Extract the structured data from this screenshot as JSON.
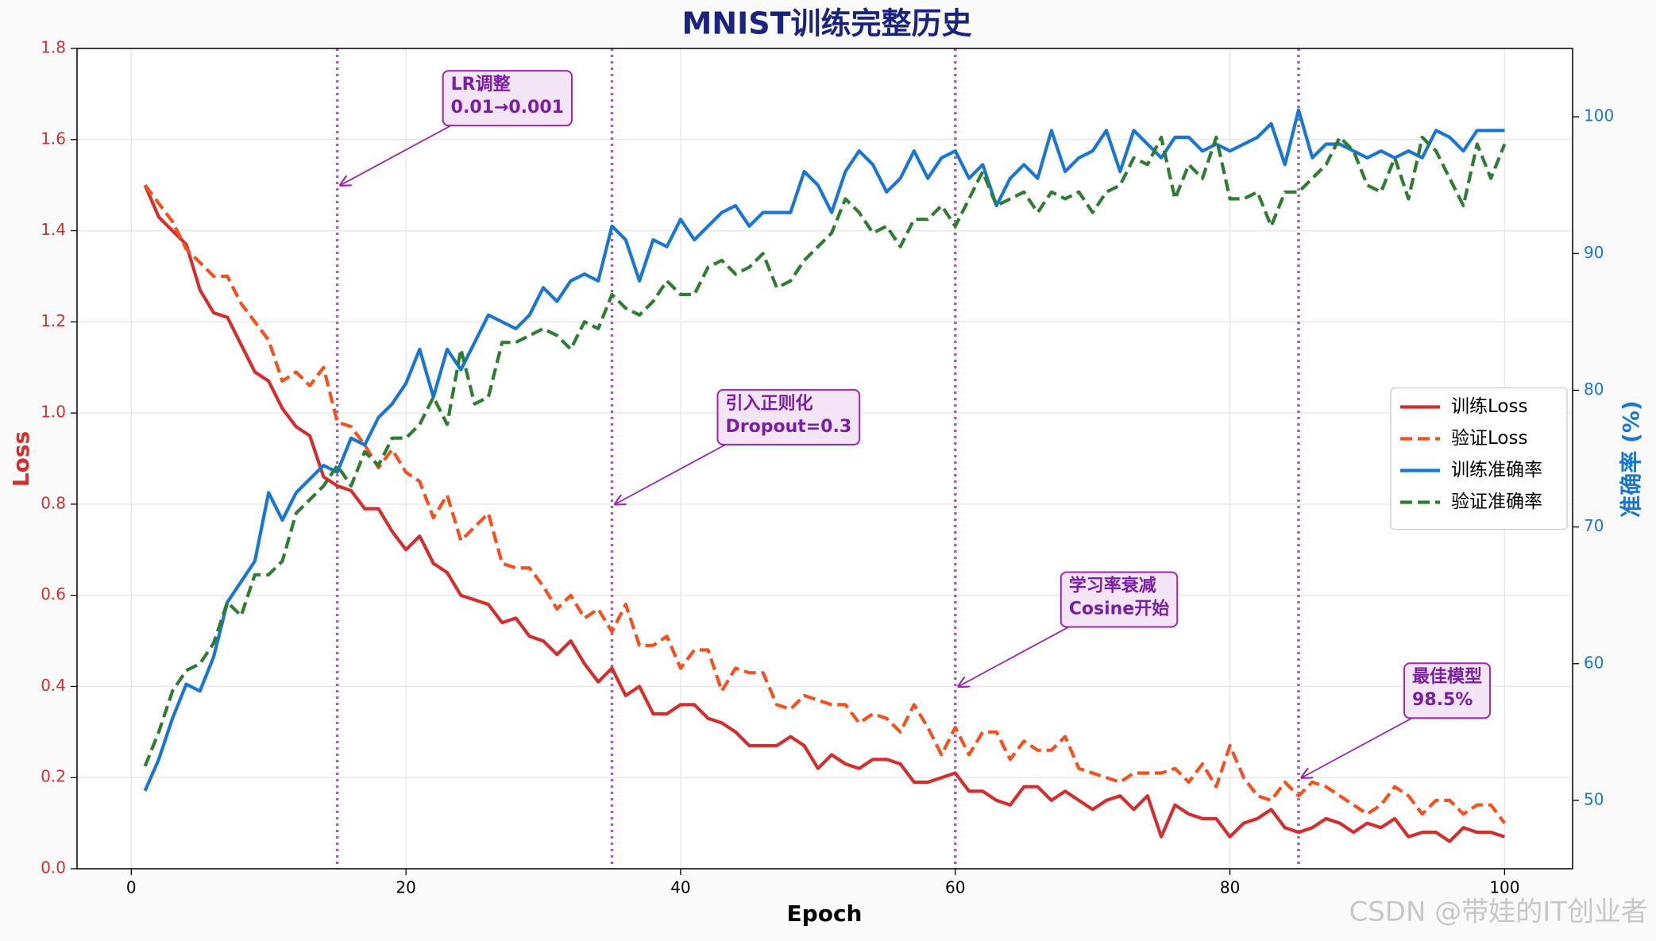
{
  "chart_data": {
    "type": "line",
    "title": "MNIST训练完整历史",
    "xlabel": "Epoch",
    "ylabel": "Loss",
    "y2label": "准确率 (%)",
    "x": [
      1,
      2,
      3,
      4,
      5,
      6,
      7,
      8,
      9,
      10,
      11,
      12,
      13,
      14,
      15,
      16,
      17,
      18,
      19,
      20,
      21,
      22,
      23,
      24,
      25,
      26,
      27,
      28,
      29,
      30,
      31,
      32,
      33,
      34,
      35,
      36,
      37,
      38,
      39,
      40,
      41,
      42,
      43,
      44,
      45,
      46,
      47,
      48,
      49,
      50,
      51,
      52,
      53,
      54,
      55,
      56,
      57,
      58,
      59,
      60,
      61,
      62,
      63,
      64,
      65,
      66,
      67,
      68,
      69,
      70,
      71,
      72,
      73,
      74,
      75,
      76,
      77,
      78,
      79,
      80,
      81,
      82,
      83,
      84,
      85,
      86,
      87,
      88,
      89,
      90,
      91,
      92,
      93,
      94,
      95,
      96,
      97,
      98,
      99,
      100
    ],
    "series": [
      {
        "name": "训练Loss",
        "color": "#d32f2f",
        "linestyle": "solid",
        "axis": "y",
        "values": [
          1.5,
          1.43,
          1.4,
          1.37,
          1.27,
          1.22,
          1.21,
          1.15,
          1.09,
          1.07,
          1.01,
          0.97,
          0.95,
          0.86,
          0.84,
          0.83,
          0.79,
          0.79,
          0.74,
          0.7,
          0.73,
          0.67,
          0.65,
          0.6,
          0.59,
          0.58,
          0.54,
          0.55,
          0.51,
          0.5,
          0.47,
          0.5,
          0.45,
          0.41,
          0.44,
          0.38,
          0.4,
          0.34,
          0.34,
          0.36,
          0.36,
          0.33,
          0.32,
          0.3,
          0.27,
          0.27,
          0.27,
          0.29,
          0.27,
          0.22,
          0.25,
          0.23,
          0.22,
          0.24,
          0.24,
          0.23,
          0.19,
          0.19,
          0.2,
          0.21,
          0.17,
          0.17,
          0.15,
          0.14,
          0.18,
          0.18,
          0.15,
          0.17,
          0.15,
          0.13,
          0.15,
          0.16,
          0.13,
          0.16,
          0.07,
          0.14,
          0.12,
          0.11,
          0.11,
          0.07,
          0.1,
          0.11,
          0.13,
          0.09,
          0.08,
          0.09,
          0.11,
          0.1,
          0.08,
          0.1,
          0.09,
          0.11,
          0.07,
          0.08,
          0.08,
          0.06,
          0.09,
          0.08,
          0.08,
          0.07
        ]
      },
      {
        "name": "验证Loss",
        "color": "#f4511e",
        "linestyle": "dashed",
        "axis": "y",
        "values": [
          1.5,
          1.46,
          1.42,
          1.36,
          1.33,
          1.3,
          1.3,
          1.24,
          1.2,
          1.16,
          1.07,
          1.09,
          1.06,
          1.1,
          0.98,
          0.97,
          0.93,
          0.88,
          0.92,
          0.87,
          0.85,
          0.77,
          0.82,
          0.72,
          0.75,
          0.78,
          0.67,
          0.66,
          0.66,
          0.62,
          0.57,
          0.6,
          0.55,
          0.57,
          0.52,
          0.58,
          0.49,
          0.49,
          0.51,
          0.44,
          0.48,
          0.48,
          0.39,
          0.44,
          0.43,
          0.43,
          0.36,
          0.35,
          0.38,
          0.37,
          0.36,
          0.36,
          0.32,
          0.34,
          0.33,
          0.3,
          0.36,
          0.31,
          0.25,
          0.31,
          0.25,
          0.3,
          0.3,
          0.24,
          0.28,
          0.26,
          0.26,
          0.29,
          0.22,
          0.21,
          0.2,
          0.19,
          0.21,
          0.21,
          0.21,
          0.22,
          0.19,
          0.23,
          0.18,
          0.27,
          0.2,
          0.16,
          0.15,
          0.19,
          0.16,
          0.19,
          0.18,
          0.16,
          0.14,
          0.12,
          0.14,
          0.18,
          0.16,
          0.12,
          0.15,
          0.15,
          0.12,
          0.14,
          0.14,
          0.1
        ]
      },
      {
        "name": "训练准确率",
        "color": "#1976d2",
        "linestyle": "solid",
        "axis": "y2",
        "values": [
          50.7,
          53,
          56,
          58.5,
          58,
          60.5,
          64.5,
          66,
          67.5,
          72.5,
          70.5,
          72.5,
          73.5,
          74.5,
          74,
          76.5,
          76,
          78,
          79,
          80.5,
          83,
          79.5,
          83,
          81.5,
          83.5,
          85.5,
          85,
          84.5,
          85.5,
          87.5,
          86.5,
          88,
          88.5,
          88,
          92,
          91,
          88,
          91,
          90.5,
          92.5,
          91,
          92,
          93,
          93.5,
          92,
          93,
          93,
          93,
          96,
          95,
          93,
          96,
          97.5,
          96.5,
          94.5,
          95.5,
          97.5,
          95.5,
          97,
          97.5,
          95.5,
          96.5,
          93.5,
          95.5,
          96.5,
          95.5,
          99,
          96,
          97,
          97.5,
          99,
          96,
          99,
          98,
          97,
          98.5,
          98.5,
          97.5,
          98,
          97.5,
          98,
          98.5,
          99.5,
          96.5,
          100.5,
          97,
          98,
          98,
          97.5,
          97,
          97.5,
          97,
          97.5,
          97,
          99,
          98.5,
          97.5,
          99,
          99,
          99
        ]
      },
      {
        "name": "验证准确率",
        "color": "#2e7d32",
        "linestyle": "dashed",
        "axis": "y2",
        "values": [
          52.5,
          55,
          58,
          59.5,
          60,
          61.5,
          64.5,
          63.5,
          66.5,
          66.5,
          67.5,
          71,
          72,
          73,
          74.5,
          73,
          75.5,
          74.5,
          76.5,
          76.5,
          77.5,
          79.5,
          77.5,
          83,
          79,
          79.5,
          83.5,
          83.5,
          84,
          84.5,
          84,
          83,
          85,
          84.5,
          87,
          86,
          85.5,
          86.5,
          88,
          87,
          87,
          89,
          89.5,
          88.5,
          89,
          90,
          87.5,
          88,
          89.5,
          90.5,
          91.5,
          94,
          93,
          91.5,
          92,
          90.5,
          92.5,
          92.5,
          93.5,
          92,
          94,
          96,
          93.5,
          94,
          94.5,
          93,
          94.5,
          94,
          94.5,
          93,
          94.5,
          95,
          97,
          96.5,
          98.5,
          94,
          96.5,
          95.5,
          98.5,
          94,
          94,
          94.5,
          92,
          94.5,
          94.5,
          95.5,
          96.5,
          98.5,
          97.5,
          95,
          94.5,
          97,
          94,
          98.5,
          97.5,
          95.5,
          93.5,
          98,
          95.5,
          98
        ]
      }
    ],
    "xlim": [
      -3.95,
      104.95
    ],
    "xticks": [
      0,
      20,
      40,
      60,
      80,
      100
    ],
    "ylim": [
      0,
      1.8
    ],
    "yticks": [
      {
        "value": 0,
        "label": "0.0"
      },
      0.2,
      0.4,
      0.6,
      0.8,
      {
        "value": 1,
        "label": "1.0"
      },
      1.2,
      1.4,
      1.6,
      1.8
    ],
    "y2lim": [
      45,
      105
    ],
    "y2ticks": [
      50,
      60,
      70,
      80,
      90,
      100
    ],
    "grid": true,
    "legend": "center right",
    "vlines": [
      15,
      35,
      60,
      85
    ],
    "vline_color": "#ab47bc",
    "annotations": [
      {
        "text": [
          "LR调整",
          "0.01→0.001"
        ],
        "x": 15,
        "y": 1.5
      },
      {
        "text": [
          "引入正则化",
          "Dropout=0.3"
        ],
        "x": 35,
        "y": 0.8
      },
      {
        "text": [
          "学习率衰减",
          "Cosine开始"
        ],
        "x": 60,
        "y": 0.4
      },
      {
        "text": [
          "最佳模型",
          "98.5%"
        ],
        "x": 85,
        "y": 0.2
      }
    ],
    "watermark": "CSDN @带娃的IT创业者"
  }
}
